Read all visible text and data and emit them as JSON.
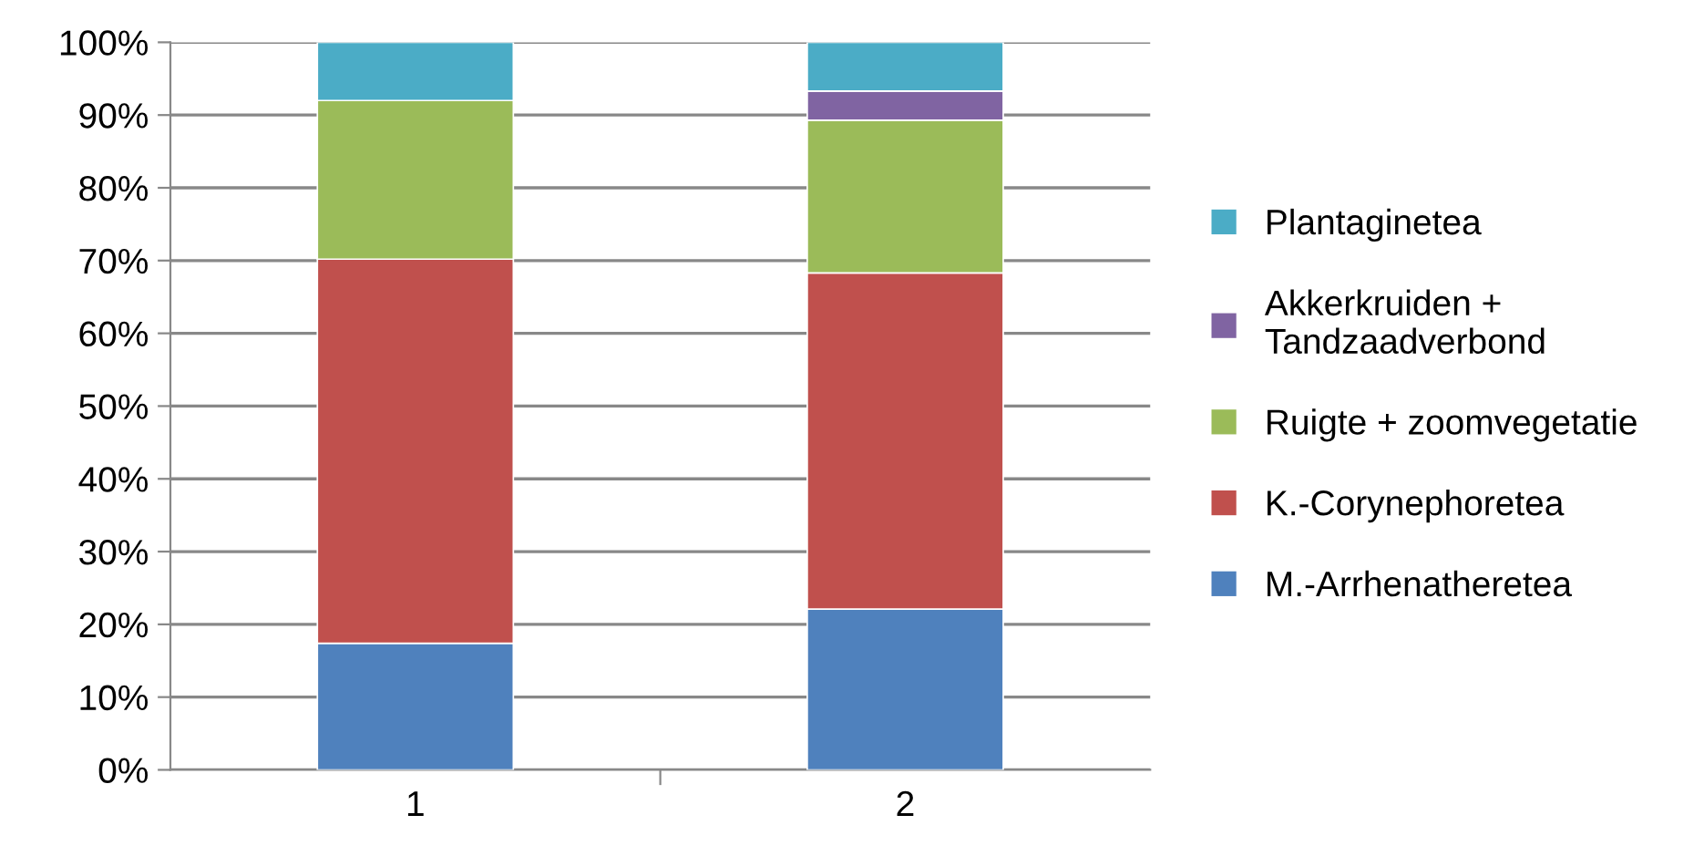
{
  "chart_data": {
    "type": "bar",
    "stacked": true,
    "categories": [
      "1",
      "2"
    ],
    "series": [
      {
        "name": "M.-Arrhenatheretea",
        "color": "#4f81bd",
        "values": [
          17.4,
          22.1
        ]
      },
      {
        "name": "K.-Corynephoretea",
        "color": "#c0504d",
        "values": [
          52.8,
          46.2
        ]
      },
      {
        "name": "Ruigte + zoomvegetatie",
        "color": "#9bbb59",
        "values": [
          21.8,
          21.0
        ]
      },
      {
        "name": "Akkerkruiden + Tandzaadverbond",
        "color": "#8064a2",
        "values": [
          0,
          4.0
        ]
      },
      {
        "name": "Plantaginetea",
        "color": "#4bacc6",
        "values": [
          8.0,
          6.7
        ]
      }
    ],
    "ylim": [
      0,
      100
    ],
    "yticks": [
      {
        "value": 0,
        "label": "0%"
      },
      {
        "value": 10,
        "label": "10%"
      },
      {
        "value": 20,
        "label": "20%"
      },
      {
        "value": 30,
        "label": "30%"
      },
      {
        "value": 40,
        "label": "40%"
      },
      {
        "value": 50,
        "label": "50%"
      },
      {
        "value": 60,
        "label": "60%"
      },
      {
        "value": 70,
        "label": "70%"
      },
      {
        "value": 80,
        "label": "80%"
      },
      {
        "value": 90,
        "label": "90%"
      },
      {
        "value": 100,
        "label": "100%"
      }
    ],
    "grid": "y",
    "legend": "right"
  }
}
